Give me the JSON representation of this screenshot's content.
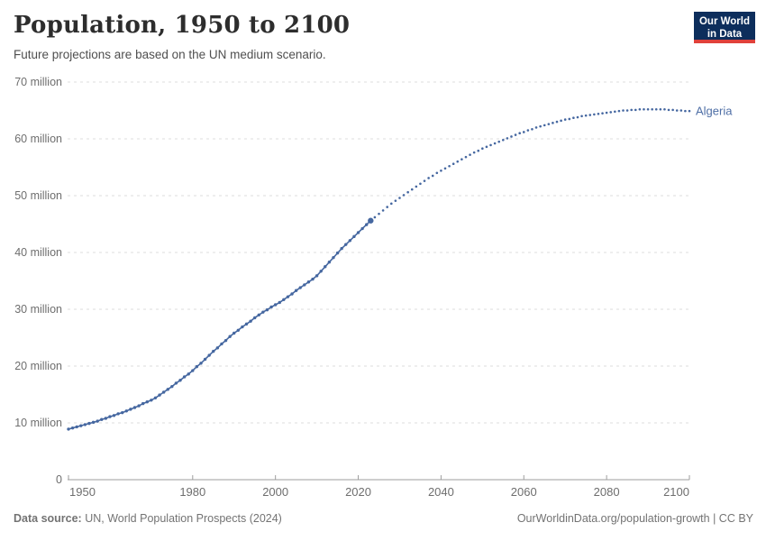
{
  "header": {
    "title": "Population, 1950 to 2100",
    "subtitle": "Future projections are based on the UN medium scenario."
  },
  "logo": {
    "line1": "Our World",
    "line2": "in Data",
    "bg_color": "#0d2e5c",
    "accent_color": "#e0413b"
  },
  "footer": {
    "source_label": "Data source:",
    "source_text": "UN, World Population Prospects (2024)",
    "link_text": "OurWorldinData.org/population-growth | CC BY"
  },
  "chart_data": {
    "type": "line",
    "title": "Population, 1950 to 2100",
    "entity": "Algeria",
    "y_unit": "million people",
    "xlim": [
      1950,
      2100
    ],
    "ylim": [
      0,
      70
    ],
    "grid": true,
    "legend_position": "end-of-line-label",
    "x_ticks": [
      1950,
      1980,
      2000,
      2020,
      2040,
      2060,
      2080,
      2100
    ],
    "y_ticks": [
      {
        "value": 0,
        "label": "0"
      },
      {
        "value": 10,
        "label": "10 million"
      },
      {
        "value": 20,
        "label": "20 million"
      },
      {
        "value": 30,
        "label": "30 million"
      },
      {
        "value": 40,
        "label": "40 million"
      },
      {
        "value": 50,
        "label": "50 million"
      },
      {
        "value": 60,
        "label": "60 million"
      },
      {
        "value": 70,
        "label": "70 million"
      }
    ],
    "end_label": {
      "text": "Algeria",
      "color": "#4f6fa6"
    },
    "colors": {
      "line": "#4567a0",
      "grid": "#dcdcdc",
      "axis": "#9e9e9e",
      "tick_text": "#6e6e6e"
    },
    "series": [
      {
        "name": "Algeria (historical estimates)",
        "style": "solid_with_markers",
        "color": "#4567a0",
        "start_year": 1950,
        "step": 1,
        "values": [
          8.9,
          9.1,
          9.3,
          9.5,
          9.7,
          9.9,
          10.1,
          10.3,
          10.6,
          10.8,
          11.1,
          11.3,
          11.6,
          11.8,
          12.1,
          12.4,
          12.7,
          13.0,
          13.4,
          13.7,
          14.0,
          14.4,
          14.9,
          15.4,
          15.9,
          16.4,
          17.0,
          17.5,
          18.1,
          18.6,
          19.2,
          19.9,
          20.5,
          21.2,
          21.9,
          22.6,
          23.2,
          23.9,
          24.5,
          25.2,
          25.8,
          26.3,
          26.9,
          27.4,
          27.9,
          28.5,
          29.0,
          29.5,
          29.9,
          30.4,
          30.8,
          31.2,
          31.7,
          32.2,
          32.7,
          33.3,
          33.8,
          34.3,
          34.8,
          35.3,
          35.9,
          36.7,
          37.5,
          38.3,
          39.1,
          39.9,
          40.7,
          41.4,
          42.1,
          42.8,
          43.5,
          44.2,
          44.9,
          45.6
        ]
      },
      {
        "name": "Algeria (UN medium scenario projection)",
        "style": "dotted",
        "color": "#4567a0",
        "start_year": 2023,
        "step": 1,
        "values": [
          45.6,
          46.2,
          46.8,
          47.4,
          48.0,
          48.6,
          49.1,
          49.6,
          50.1,
          50.6,
          51.1,
          51.6,
          52.1,
          52.6,
          53.1,
          53.5,
          54.0,
          54.4,
          54.8,
          55.2,
          55.6,
          56.0,
          56.4,
          56.8,
          57.2,
          57.6,
          57.9,
          58.3,
          58.6,
          58.9,
          59.2,
          59.5,
          59.8,
          60.1,
          60.4,
          60.7,
          61.0,
          61.2,
          61.5,
          61.7,
          62.0,
          62.2,
          62.4,
          62.6,
          62.8,
          63.0,
          63.2,
          63.4,
          63.5,
          63.7,
          63.8,
          64.0,
          64.1,
          64.2,
          64.3,
          64.4,
          64.5,
          64.6,
          64.7,
          64.8,
          64.9,
          65.0,
          65.0,
          65.1,
          65.1,
          65.2,
          65.2,
          65.2,
          65.2,
          65.2,
          65.2,
          65.2,
          65.1,
          65.1,
          65.0,
          65.0,
          64.9,
          64.9
        ]
      }
    ]
  }
}
